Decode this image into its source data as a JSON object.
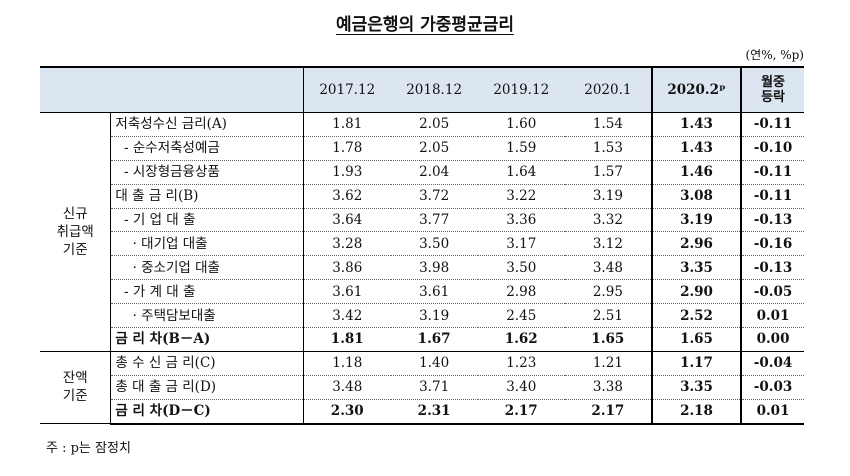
{
  "title": "예금은행의 가중평균금리",
  "unit": "(연%, %p)",
  "columns": [
    "2017.12",
    "2018.12",
    "2019.12",
    "2020.1",
    "2020.2ᵖ",
    "월중\n등락"
  ],
  "groups": {
    "new": "신규\n취급액\n기준",
    "balance": "잔액\n기준"
  },
  "rows": [
    {
      "label": "저축성수신 금리(A)",
      "v": [
        "1.81",
        "2.05",
        "1.60",
        "1.54",
        "1.43",
        "-0.11"
      ]
    },
    {
      "label": "  - 순수저축성예금",
      "v": [
        "1.78",
        "2.05",
        "1.59",
        "1.53",
        "1.43",
        "-0.10"
      ]
    },
    {
      "label": "  - 시장형금융상품",
      "v": [
        "1.93",
        "2.04",
        "1.64",
        "1.57",
        "1.46",
        "-0.11"
      ]
    },
    {
      "label": "대 출 금 리(B)",
      "v": [
        "3.62",
        "3.72",
        "3.22",
        "3.19",
        "3.08",
        "-0.11"
      ]
    },
    {
      "label": "  - 기 업 대 출",
      "v": [
        "3.64",
        "3.77",
        "3.36",
        "3.32",
        "3.19",
        "-0.13"
      ]
    },
    {
      "label": "    · 대기업 대출",
      "v": [
        "3.28",
        "3.50",
        "3.17",
        "3.12",
        "2.96",
        "-0.16"
      ]
    },
    {
      "label": "    · 중소기업 대출",
      "v": [
        "3.86",
        "3.98",
        "3.50",
        "3.48",
        "3.35",
        "-0.13"
      ]
    },
    {
      "label": "  - 가 계 대 출",
      "v": [
        "3.61",
        "3.61",
        "2.98",
        "2.95",
        "2.90",
        "-0.05"
      ]
    },
    {
      "label": "    · 주택담보대출",
      "v": [
        "3.42",
        "3.19",
        "2.45",
        "2.51",
        "2.52",
        "0.01"
      ]
    },
    {
      "label": "금 리 차(B－A)",
      "v": [
        "1.81",
        "1.67",
        "1.62",
        "1.65",
        "1.65",
        "0.00"
      ]
    },
    {
      "label": "총 수 신 금 리(C)",
      "v": [
        "1.18",
        "1.40",
        "1.23",
        "1.21",
        "1.17",
        "-0.04"
      ]
    },
    {
      "label": "총 대 출 금 리(D)",
      "v": [
        "3.48",
        "3.71",
        "3.40",
        "3.38",
        "3.35",
        "-0.03"
      ]
    },
    {
      "label": "금 리 차(D－C)",
      "v": [
        "2.30",
        "2.31",
        "2.17",
        "2.17",
        "2.18",
        "0.01"
      ]
    }
  ],
  "note": "주 : p는 잠정치"
}
